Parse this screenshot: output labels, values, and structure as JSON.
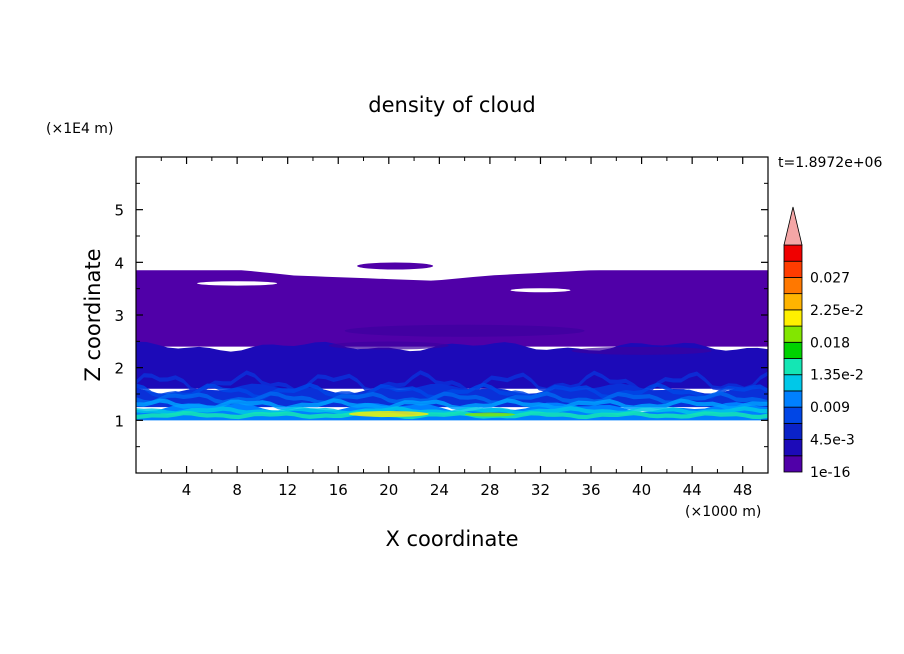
{
  "chart_data": {
    "type": "heatmap",
    "title": "density of cloud",
    "time_label": "t=1.8972e+06",
    "xlabel": "X coordinate",
    "ylabel": "Z coordinate",
    "x_unit": "(×1000 m)",
    "y_unit": "(×1E4 m)",
    "xlim": [
      0,
      50
    ],
    "ylim": [
      0,
      6
    ],
    "x_ticks": [
      4,
      8,
      12,
      16,
      20,
      24,
      28,
      32,
      36,
      40,
      44,
      48
    ],
    "y_ticks": [
      1,
      2,
      3,
      4,
      5
    ],
    "x_tick_labels": [
      "4",
      "8",
      "12",
      "16",
      "20",
      "24",
      "28",
      "32",
      "36",
      "40",
      "44",
      "48"
    ],
    "y_tick_labels": [
      "1",
      "2",
      "3",
      "4",
      "5"
    ],
    "colorbar": {
      "levels": [
        "1e-16",
        "4.5e-3",
        "0.009",
        "1.35e-2",
        "0.018",
        "2.25e-2",
        "0.027"
      ],
      "colors": [
        "#5000a8",
        "#1c0ab8",
        "#0a22c8",
        "#0046e6",
        "#0080ff",
        "#00c8e8",
        "#14e6b4",
        "#00d200",
        "#82e600",
        "#fff000",
        "#ffb400",
        "#ff7800",
        "#ff3c00",
        "#f00000"
      ],
      "extend_color": "#f4a6a6"
    },
    "field": {
      "cloud_base": 1.0,
      "cloud_top_profile": [
        [
          0,
          3.85
        ],
        [
          8.5,
          3.85
        ],
        [
          12.5,
          3.75
        ],
        [
          23.5,
          3.65
        ],
        [
          28,
          3.75
        ],
        [
          36,
          3.85
        ],
        [
          50,
          3.85
        ]
      ],
      "bands": [
        {
          "z_min": 2.4,
          "z_max": 3.85,
          "level": "1e-16",
          "color": "#5000a8"
        },
        {
          "z_min": 1.6,
          "z_max": 2.4,
          "level": "1e-16 – 4.5e-3",
          "color": "#1c0ab8"
        },
        {
          "z_min": 1.25,
          "z_max": 1.6,
          "level": "4.5e-3 – 0.009",
          "color": "#0a30d8"
        },
        {
          "z_min": 1.0,
          "z_max": 1.25,
          "level": "0.009 – 2.25e-2",
          "color": "#0080ff"
        }
      ],
      "peak": {
        "x": 20,
        "z": 1.12,
        "level": "2.25e-2"
      }
    }
  }
}
